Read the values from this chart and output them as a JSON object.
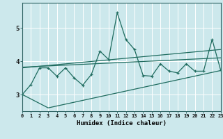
{
  "xlabel": "Humidex (Indice chaleur)",
  "bg_color": "#cce8ec",
  "line_color": "#1e6b5e",
  "grid_color": "#ffffff",
  "x_min": 0,
  "x_max": 23,
  "y_min": 2.5,
  "y_max": 5.75,
  "yticks": [
    3,
    4,
    5
  ],
  "xticks": [
    0,
    1,
    2,
    3,
    4,
    5,
    6,
    7,
    8,
    9,
    10,
    11,
    12,
    13,
    14,
    15,
    16,
    17,
    18,
    19,
    20,
    21,
    22,
    23
  ],
  "series_main": {
    "x": [
      0,
      1,
      2,
      3,
      4,
      5,
      6,
      7,
      8,
      9,
      10,
      11,
      12,
      13,
      14,
      15,
      16,
      17,
      18,
      19,
      20,
      21,
      22,
      23
    ],
    "y": [
      3.0,
      3.3,
      3.8,
      3.8,
      3.55,
      3.8,
      3.5,
      3.28,
      3.6,
      4.3,
      4.05,
      5.45,
      4.65,
      4.35,
      3.57,
      3.55,
      3.92,
      3.7,
      3.65,
      3.92,
      3.7,
      3.7,
      4.65,
      3.72
    ]
  },
  "series_upper": {
    "x": [
      0,
      23
    ],
    "y": [
      3.8,
      4.35
    ]
  },
  "series_mid": {
    "x": [
      0,
      23
    ],
    "y": [
      3.82,
      4.1
    ]
  },
  "series_lower": {
    "x": [
      0,
      3,
      23
    ],
    "y": [
      3.0,
      2.6,
      3.72
    ]
  }
}
